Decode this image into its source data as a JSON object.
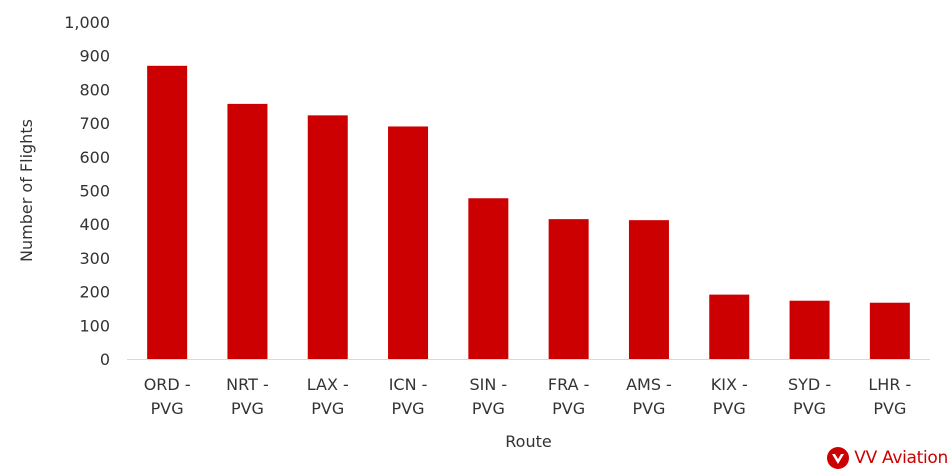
{
  "chart_data": {
    "type": "bar",
    "categories": [
      [
        "ORD -",
        "PVG"
      ],
      [
        "NRT -",
        "PVG"
      ],
      [
        "LAX -",
        "PVG"
      ],
      [
        "ICN -",
        "PVG"
      ],
      [
        "SIN -",
        "PVG"
      ],
      [
        "FRA -",
        "PVG"
      ],
      [
        "AMS -",
        "PVG"
      ],
      [
        "KIX -",
        "PVG"
      ],
      [
        "SYD -",
        "PVG"
      ],
      [
        "LHR -",
        "PVG"
      ]
    ],
    "values": [
      870,
      757,
      723,
      690,
      477,
      415,
      412,
      191,
      173,
      167
    ],
    "title": "",
    "xlabel": "Route",
    "ylabel": "Number of Flights",
    "ylim": [
      0,
      1000
    ],
    "yticks": [
      0,
      100,
      200,
      300,
      400,
      500,
      600,
      700,
      800,
      900,
      1000
    ],
    "ytick_labels": [
      "0",
      "100",
      "200",
      "300",
      "400",
      "500",
      "600",
      "700",
      "800",
      "900",
      "1,000"
    ],
    "grid": false,
    "legend": "none",
    "bar_color": "#cc0000",
    "axis_color": "#d9d9d9"
  },
  "logo": {
    "text": "VV Aviation",
    "color": "#cc0000"
  }
}
